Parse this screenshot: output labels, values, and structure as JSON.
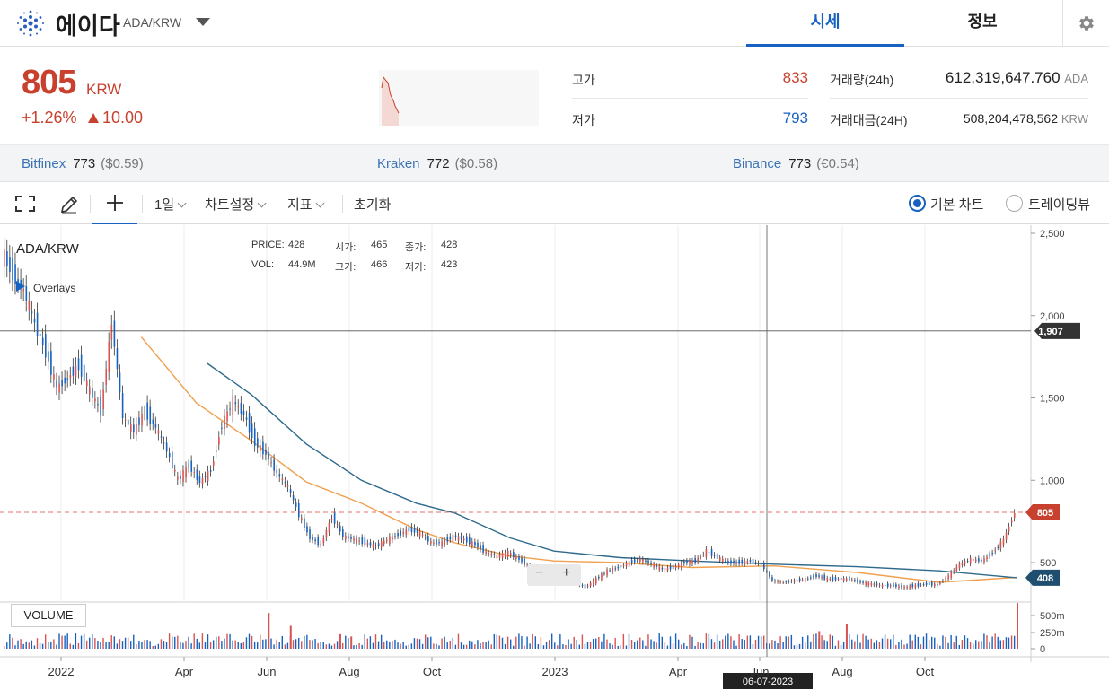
{
  "header": {
    "coin_name": "에이다",
    "pair": "ADA/KRW",
    "tabs": [
      {
        "label": "시세",
        "active": true
      },
      {
        "label": "정보",
        "active": false
      }
    ],
    "settings_icon": "gear-icon",
    "accent_color": "#1761c0"
  },
  "price": {
    "current": "805",
    "unit": "KRW",
    "change_pct": "+1.26%",
    "change_abs": "10.00",
    "color_up": "#c8412e",
    "color_down": "#1761c0"
  },
  "stats": {
    "high_label": "고가",
    "high_value": "833",
    "low_label": "저가",
    "low_value": "793",
    "volume_label": "거래량(24h)",
    "volume_value": "612,319,647.760",
    "volume_unit": "ADA",
    "turnover_label": "거래대금(24H)",
    "turnover_value": "508,204,478,562",
    "turnover_unit": "KRW"
  },
  "exchanges": [
    {
      "name": "Bitfinex",
      "price": "773",
      "foreign": "($0.59)"
    },
    {
      "name": "Kraken",
      "price": "772",
      "foreign": "($0.58)"
    },
    {
      "name": "Binance",
      "price": "773",
      "foreign": "(€0.54)"
    }
  ],
  "toolbar": {
    "fullscreen_icon": "fullscreen-icon",
    "pencil_icon": "pencil-icon",
    "crosshair_icon": "crosshair-icon",
    "interval": "1일",
    "chart_settings": "차트설정",
    "indicators": "지표",
    "reset": "초기화",
    "view_basic": "기본 차트",
    "view_tradingview": "트레이딩뷰",
    "selected_view": "basic"
  },
  "chart_data": {
    "type": "candlestick",
    "title": "ADA/KRW",
    "overlays_label": "Overlays",
    "ohlc_legend": {
      "price_label": "PRICE:",
      "price": "428",
      "open_label": "시가:",
      "open": "465",
      "close_label": "종가:",
      "close": "428",
      "vol_label": "VOL:",
      "vol": "44.9M",
      "high_label": "고가:",
      "high": "466",
      "low_label": "저가:",
      "low": "423"
    },
    "y_ticks": [
      "2,500",
      "2,000",
      "1,500",
      "1,000",
      "500"
    ],
    "y_ticks_values": [
      2500,
      2000,
      1500,
      1000,
      500
    ],
    "ylim": [
      270,
      2530
    ],
    "x_ticks": [
      "2022",
      "Apr",
      "Jun",
      "Aug",
      "Oct",
      "2023",
      "Apr",
      "Jun",
      "Aug",
      "Oct"
    ],
    "crosshair": {
      "date": "06-07-2023",
      "price": "1,907",
      "price_value": 1907
    },
    "last_price_tag": {
      "label": "805",
      "value": 805,
      "color": "#c8412e"
    },
    "ma_tag": {
      "label": "408",
      "value": 408,
      "color": "#1f4e6e"
    },
    "price_series": [
      {
        "t": 0,
        "v": 2390
      },
      {
        "t": 2,
        "v": 2250
      },
      {
        "t": 4,
        "v": 2150
      },
      {
        "t": 6,
        "v": 1950
      },
      {
        "t": 8,
        "v": 1780
      },
      {
        "t": 10,
        "v": 1560
      },
      {
        "t": 12,
        "v": 1620
      },
      {
        "t": 14,
        "v": 1700
      },
      {
        "t": 16,
        "v": 1540
      },
      {
        "t": 18,
        "v": 1420
      },
      {
        "t": 20,
        "v": 1960
      },
      {
        "t": 22,
        "v": 1380
      },
      {
        "t": 24,
        "v": 1300
      },
      {
        "t": 26,
        "v": 1420
      },
      {
        "t": 28,
        "v": 1320
      },
      {
        "t": 30,
        "v": 1180
      },
      {
        "t": 32,
        "v": 1000
      },
      {
        "t": 34,
        "v": 1090
      },
      {
        "t": 36,
        "v": 990
      },
      {
        "t": 38,
        "v": 1060
      },
      {
        "t": 40,
        "v": 1340
      },
      {
        "t": 42,
        "v": 1480
      },
      {
        "t": 44,
        "v": 1400
      },
      {
        "t": 46,
        "v": 1230
      },
      {
        "t": 48,
        "v": 1160
      },
      {
        "t": 50,
        "v": 1040
      },
      {
        "t": 52,
        "v": 960
      },
      {
        "t": 54,
        "v": 790
      },
      {
        "t": 56,
        "v": 650
      },
      {
        "t": 58,
        "v": 610
      },
      {
        "t": 60,
        "v": 780
      },
      {
        "t": 62,
        "v": 660
      },
      {
        "t": 64,
        "v": 640
      },
      {
        "t": 66,
        "v": 620
      },
      {
        "t": 68,
        "v": 600
      },
      {
        "t": 70,
        "v": 640
      },
      {
        "t": 72,
        "v": 670
      },
      {
        "t": 74,
        "v": 700
      },
      {
        "t": 76,
        "v": 680
      },
      {
        "t": 78,
        "v": 620
      },
      {
        "t": 80,
        "v": 620
      },
      {
        "t": 82,
        "v": 660
      },
      {
        "t": 84,
        "v": 640
      },
      {
        "t": 86,
        "v": 610
      },
      {
        "t": 88,
        "v": 560
      },
      {
        "t": 90,
        "v": 540
      },
      {
        "t": 92,
        "v": 560
      },
      {
        "t": 94,
        "v": 520
      },
      {
        "t": 96,
        "v": 470
      },
      {
        "t": 98,
        "v": 455
      },
      {
        "t": 100,
        "v": 440
      },
      {
        "t": 102,
        "v": 450
      },
      {
        "t": 104,
        "v": 380
      },
      {
        "t": 106,
        "v": 350
      },
      {
        "t": 108,
        "v": 400
      },
      {
        "t": 110,
        "v": 450
      },
      {
        "t": 112,
        "v": 470
      },
      {
        "t": 114,
        "v": 500
      },
      {
        "t": 116,
        "v": 520
      },
      {
        "t": 118,
        "v": 490
      },
      {
        "t": 120,
        "v": 460
      },
      {
        "t": 122,
        "v": 470
      },
      {
        "t": 124,
        "v": 500
      },
      {
        "t": 126,
        "v": 510
      },
      {
        "t": 128,
        "v": 570
      },
      {
        "t": 130,
        "v": 530
      },
      {
        "t": 132,
        "v": 500
      },
      {
        "t": 134,
        "v": 500
      },
      {
        "t": 136,
        "v": 510
      },
      {
        "t": 138,
        "v": 490
      },
      {
        "t": 140,
        "v": 390
      },
      {
        "t": 142,
        "v": 380
      },
      {
        "t": 144,
        "v": 390
      },
      {
        "t": 146,
        "v": 400
      },
      {
        "t": 148,
        "v": 420
      },
      {
        "t": 150,
        "v": 400
      },
      {
        "t": 152,
        "v": 400
      },
      {
        "t": 154,
        "v": 400
      },
      {
        "t": 156,
        "v": 380
      },
      {
        "t": 158,
        "v": 370
      },
      {
        "t": 160,
        "v": 360
      },
      {
        "t": 162,
        "v": 360
      },
      {
        "t": 164,
        "v": 350
      },
      {
        "t": 166,
        "v": 360
      },
      {
        "t": 168,
        "v": 370
      },
      {
        "t": 170,
        "v": 365
      },
      {
        "t": 172,
        "v": 420
      },
      {
        "t": 174,
        "v": 490
      },
      {
        "t": 176,
        "v": 520
      },
      {
        "t": 178,
        "v": 510
      },
      {
        "t": 180,
        "v": 560
      },
      {
        "t": 182,
        "v": 640
      },
      {
        "t": 184,
        "v": 805
      }
    ],
    "ma_slow": [
      {
        "t": 37,
        "v": 1710
      },
      {
        "t": 45,
        "v": 1520
      },
      {
        "t": 55,
        "v": 1220
      },
      {
        "t": 65,
        "v": 1000
      },
      {
        "t": 75,
        "v": 860
      },
      {
        "t": 82,
        "v": 800
      },
      {
        "t": 92,
        "v": 650
      },
      {
        "t": 100,
        "v": 570
      },
      {
        "t": 112,
        "v": 530
      },
      {
        "t": 125,
        "v": 510
      },
      {
        "t": 140,
        "v": 490
      },
      {
        "t": 155,
        "v": 475
      },
      {
        "t": 170,
        "v": 450
      },
      {
        "t": 184,
        "v": 408
      }
    ],
    "ma_fast": [
      {
        "t": 25,
        "v": 1870
      },
      {
        "t": 35,
        "v": 1470
      },
      {
        "t": 45,
        "v": 1240
      },
      {
        "t": 55,
        "v": 990
      },
      {
        "t": 65,
        "v": 860
      },
      {
        "t": 75,
        "v": 700
      },
      {
        "t": 82,
        "v": 620
      },
      {
        "t": 92,
        "v": 540
      },
      {
        "t": 100,
        "v": 510
      },
      {
        "t": 112,
        "v": 500
      },
      {
        "t": 125,
        "v": 470
      },
      {
        "t": 140,
        "v": 480
      },
      {
        "t": 155,
        "v": 440
      },
      {
        "t": 170,
        "v": 380
      },
      {
        "t": 184,
        "v": 410
      }
    ],
    "volume_label": "VOLUME",
    "volume_ticks": [
      "500m",
      "250m",
      "0"
    ],
    "volume_ticks_values": [
      500,
      250,
      0
    ],
    "volume_series": [
      {
        "t": 48,
        "v": 470
      },
      {
        "t": 52,
        "v": 300
      },
      {
        "t": 61,
        "v": 190
      },
      {
        "t": 63,
        "v": 160
      },
      {
        "t": 148,
        "v": 230
      },
      {
        "t": 153,
        "v": 320
      },
      {
        "t": 184,
        "v": 600
      }
    ],
    "colors": {
      "up": "#d9534f",
      "down": "#1761c0",
      "ma_slow": "#2e6a8c",
      "ma_fast": "#f0a050",
      "grid": "#e6e6e6"
    }
  }
}
